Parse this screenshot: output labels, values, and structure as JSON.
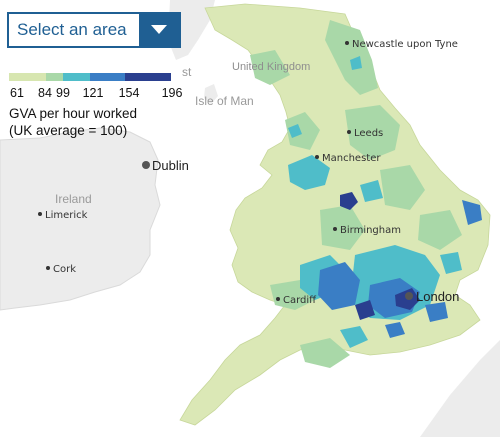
{
  "selector": {
    "label": "Select an area",
    "icon": "chevron-down-icon"
  },
  "legend": {
    "ticks": [
      "61",
      "84",
      "99",
      "121",
      "154",
      "196"
    ],
    "title_line1": "GVA per hour worked",
    "title_line2": "(UK average = 100)",
    "colors": [
      "#d7e6b0",
      "#a9d8a8",
      "#4fbdc9",
      "#3a7ec5",
      "#2a3f8f"
    ]
  },
  "map_labels": {
    "country": "United Kingdom",
    "isle": "Isle of Man",
    "ireland": "Ireland",
    "partial": "st"
  },
  "cities": {
    "newcastle": "Newcastle upon Tyne",
    "leeds": "Leeds",
    "manchester": "Manchester",
    "birmingham": "Birmingham",
    "cardiff": "Cardiff",
    "london": "London",
    "dublin": "Dublin",
    "limerick": "Limerick",
    "cork": "Cork"
  },
  "colors": {
    "land_grey": "#ececec",
    "sea": "#ffffff",
    "brand_blue": "#1f5f93"
  }
}
